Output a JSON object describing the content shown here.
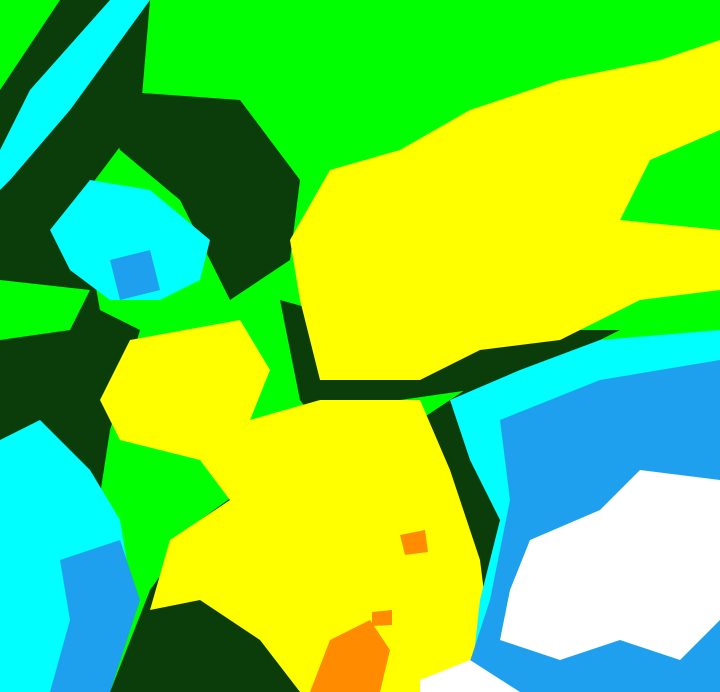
{
  "image": {
    "kind": "color-classified raster",
    "palette": {
      "dark_green": "#0b3d0b",
      "green": "#00ff00",
      "yellow": "#ffff00",
      "cyan": "#00ffff",
      "blue": "#1ea0ee",
      "white": "#ffffff",
      "orange": "#ff8c00"
    }
  }
}
